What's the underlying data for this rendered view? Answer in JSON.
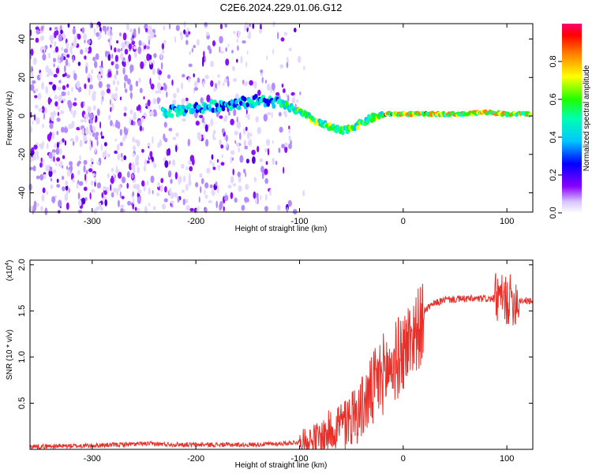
{
  "title": "C2E6.2024.229.01.06.G12",
  "chart_data": [
    {
      "type": "heatmap",
      "name": "spectrogram",
      "xlabel": "Height of straight line (km)",
      "ylabel": "Frequency (Hz)",
      "xlim": [
        -360,
        125
      ],
      "ylim": [
        -50,
        48
      ],
      "xticks": [
        -300,
        -200,
        -100,
        0,
        100
      ],
      "yticks": [
        -40,
        -20,
        0,
        20,
        40
      ],
      "ridge": {
        "x": [
          -230,
          -200,
          -170,
          -140,
          -120,
          -100,
          -80,
          -60,
          -45,
          -30,
          -15,
          0,
          20,
          40,
          60,
          80,
          100,
          125
        ],
        "frequency": [
          2,
          4,
          6,
          8,
          7,
          2,
          -4,
          -8,
          -5,
          -1,
          1,
          1,
          1,
          1,
          1,
          2,
          1,
          1
        ]
      },
      "colorbar": {
        "label": "Normalized spectral amplitude",
        "range": [
          0.0,
          1.0
        ],
        "ticks": [
          0.0,
          0.2,
          0.4,
          0.6,
          0.8
        ]
      }
    },
    {
      "type": "line",
      "name": "snr",
      "xlabel": "Height of straight line (km)",
      "ylabel": "SNR (10 * v/v)",
      "y_scale_label": "(x10",
      "y_scale_exp": "4",
      "xlim": [
        -360,
        125
      ],
      "ylim": [
        0.0,
        2.05
      ],
      "xticks": [
        -300,
        -200,
        -100,
        0,
        100
      ],
      "yticks": [
        0.5,
        1.0,
        1.5,
        2.0
      ],
      "series": [
        {
          "name": "SNR",
          "color": "#e8302a",
          "x": [
            -360,
            -300,
            -250,
            -200,
            -150,
            -120,
            -100,
            -80,
            -60,
            -50,
            -40,
            -30,
            -20,
            -10,
            0,
            10,
            20,
            30,
            40,
            60,
            80,
            90,
            95,
            100,
            110,
            125
          ],
          "y": [
            0.03,
            0.04,
            0.06,
            0.05,
            0.05,
            0.06,
            0.08,
            0.12,
            0.3,
            0.45,
            0.55,
            0.75,
            0.95,
            1.05,
            1.2,
            1.4,
            1.5,
            1.58,
            1.62,
            1.63,
            1.63,
            1.63,
            1.62,
            1.62,
            1.62,
            1.6
          ]
        }
      ]
    }
  ]
}
